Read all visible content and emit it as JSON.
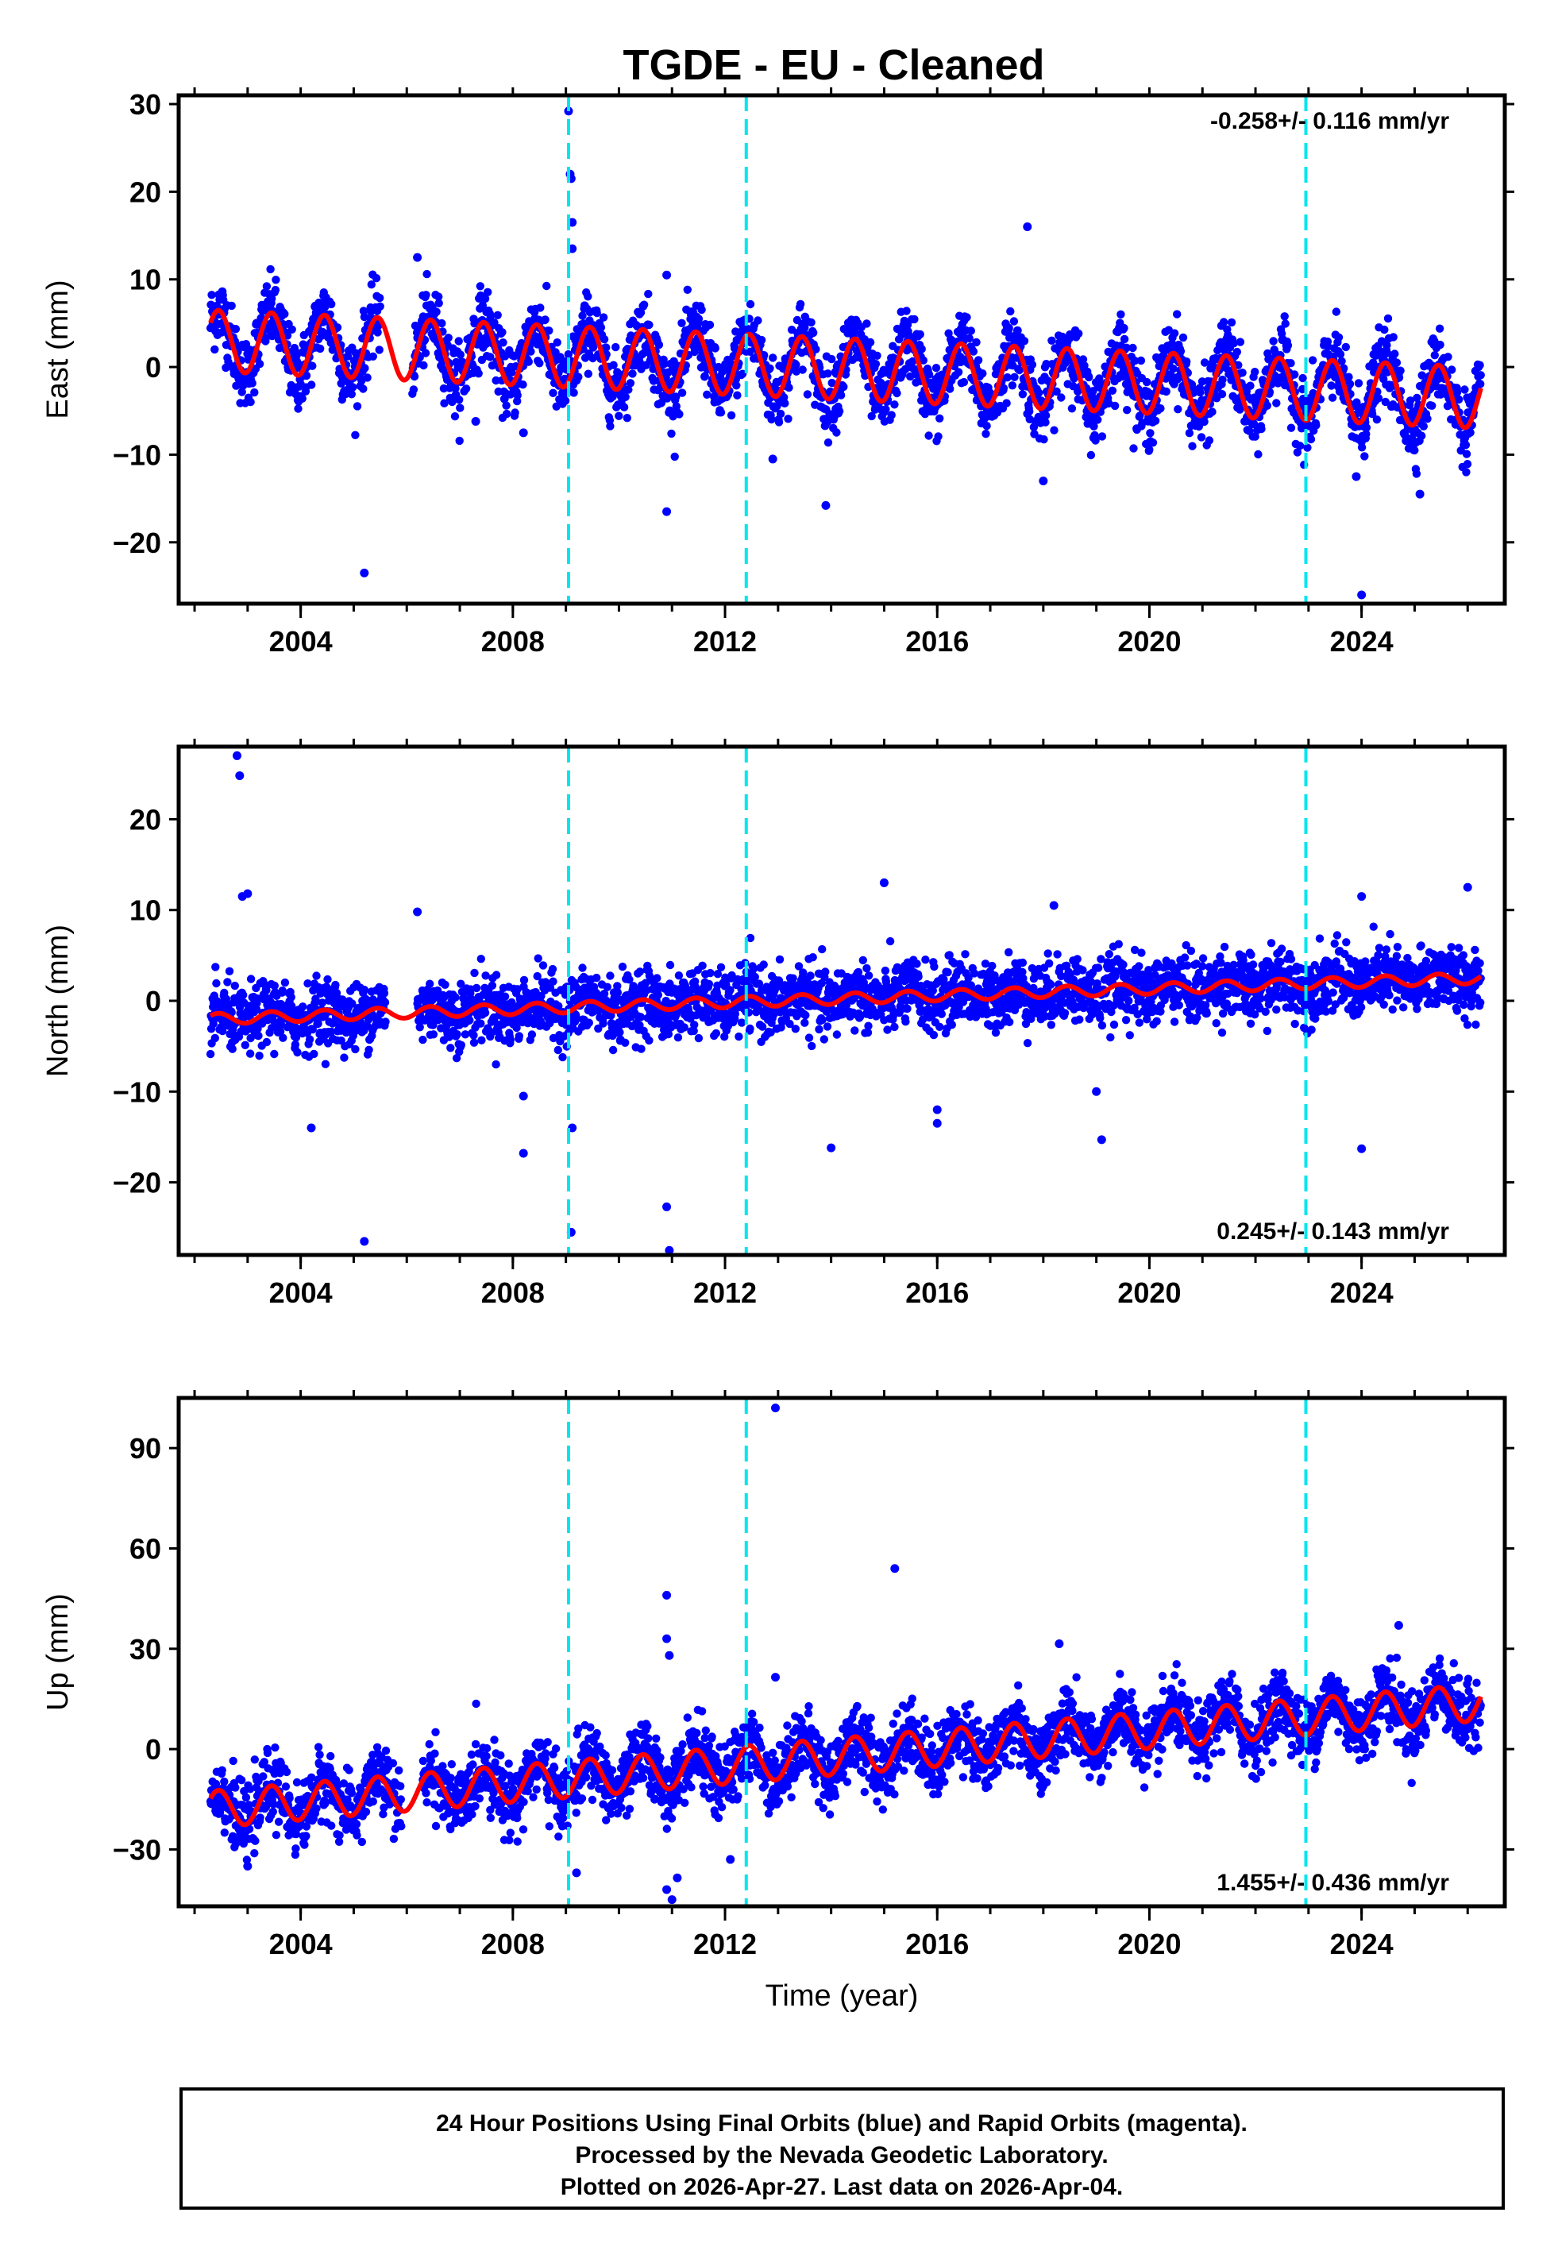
{
  "title": "TGDE  - EU - Cleaned",
  "colors": {
    "data_points": "#0000ff",
    "model_line": "#ff0000",
    "event_lines": "#00e5ee",
    "frame": "#000000"
  },
  "chart_data": [
    {
      "type": "scatter",
      "component": "east",
      "ylabel": "East (mm)",
      "xlim": [
        2001.7,
        2026.7
      ],
      "ylim": [
        -27,
        31
      ],
      "yticks": [
        -20,
        -10,
        0,
        10,
        20,
        30
      ],
      "ytick_labels": [
        "−20",
        "−10",
        "0",
        "10",
        "20",
        "30"
      ],
      "xticks": [
        2004,
        2008,
        2012,
        2016,
        2020,
        2024
      ],
      "xtick_labels": [
        "2004",
        "2008",
        "2012",
        "2016",
        "2020",
        "2024"
      ],
      "rate_label": "-0.258+/- 0.116 mm/yr",
      "rate_position": "top-right",
      "series": [
        {
          "name": "daily positions (final orbits)",
          "color": "#0000ff",
          "trend_start": 3.0,
          "trend_end": -3.5,
          "amplitude": 3.5,
          "scatter": 2.0
        },
        {
          "name": "model fit",
          "color": "#ff0000",
          "trend_start": 3.0,
          "trend_end": -3.5,
          "amplitude": 3.5,
          "steps": []
        }
      ],
      "outliers": [
        [
          2009.05,
          29.2
        ],
        [
          2009.08,
          22.0
        ],
        [
          2009.1,
          21.5
        ],
        [
          2009.12,
          16.5
        ],
        [
          2009.12,
          13.5
        ],
        [
          2006.2,
          12.5
        ],
        [
          2010.9,
          10.5
        ],
        [
          2017.7,
          16.0
        ],
        [
          2005.2,
          -23.5
        ],
        [
          2010.9,
          -16.5
        ],
        [
          2013.9,
          -15.8
        ],
        [
          2018.0,
          -13.0
        ],
        [
          2012.9,
          -10.5
        ],
        [
          2024.0,
          -26.0
        ],
        [
          2023.9,
          -12.5
        ],
        [
          2025.1,
          -14.5
        ],
        [
          2007.3,
          -6.2
        ],
        [
          2008.2,
          -7.5
        ]
      ],
      "event_dates": [
        2009.05,
        2012.4,
        2022.95
      ],
      "gaps": [
        [
          2005.5,
          2006.1
        ]
      ]
    },
    {
      "type": "scatter",
      "component": "north",
      "ylabel": "North (mm)",
      "xlim": [
        2001.7,
        2026.7
      ],
      "ylim": [
        -28,
        28
      ],
      "yticks": [
        -20,
        -10,
        0,
        10,
        20
      ],
      "ytick_labels": [
        "−20",
        "−10",
        "0",
        "10",
        "20"
      ],
      "xticks": [
        2004,
        2008,
        2012,
        2016,
        2020,
        2024
      ],
      "xtick_labels": [
        "2004",
        "2008",
        "2012",
        "2016",
        "2020",
        "2024"
      ],
      "rate_label": "0.245+/- 0.143 mm/yr",
      "rate_position": "bottom-right",
      "series": [
        {
          "name": "daily positions (final orbits)",
          "color": "#0000ff",
          "trend_start": -2.0,
          "trend_end": 2.5,
          "amplitude": 0.6,
          "scatter": 1.8
        },
        {
          "name": "model fit",
          "color": "#ff0000",
          "trend_start": -2.0,
          "trend_end": 2.5,
          "amplitude": 0.6,
          "steps": [
            [
              2009.05,
              -2.8
            ],
            [
              2012.4,
              1.0
            ],
            [
              2022.95,
              2.5
            ]
          ]
        }
      ],
      "outliers": [
        [
          2002.8,
          27.0
        ],
        [
          2002.85,
          24.8
        ],
        [
          2002.9,
          11.5
        ],
        [
          2003.0,
          11.8
        ],
        [
          2006.2,
          9.8
        ],
        [
          2015.0,
          13.0
        ],
        [
          2018.2,
          10.5
        ],
        [
          2026.0,
          12.5
        ],
        [
          2024.0,
          11.5
        ],
        [
          2004.2,
          -14.0
        ],
        [
          2005.2,
          -26.5
        ],
        [
          2008.2,
          -16.8
        ],
        [
          2008.2,
          -10.5
        ],
        [
          2009.1,
          -25.5
        ],
        [
          2009.12,
          -14.0
        ],
        [
          2010.9,
          -22.7
        ],
        [
          2010.95,
          -27.5
        ],
        [
          2014.0,
          -16.2
        ],
        [
          2016.0,
          -13.5
        ],
        [
          2016.0,
          -12.0
        ],
        [
          2019.1,
          -15.3
        ],
        [
          2019.0,
          -10.0
        ],
        [
          2024.0,
          -16.3
        ]
      ],
      "event_dates": [
        2009.05,
        2012.4,
        2022.95
      ],
      "gaps": [
        [
          2005.6,
          2006.2
        ]
      ]
    },
    {
      "type": "scatter",
      "component": "up",
      "ylabel": "Up (mm)",
      "xlim": [
        2001.7,
        2026.7
      ],
      "ylim": [
        -47,
        105
      ],
      "yticks": [
        -30,
        0,
        30,
        60,
        90
      ],
      "ytick_labels": [
        "−30",
        "0",
        "30",
        "60",
        "90"
      ],
      "xticks": [
        2004,
        2008,
        2012,
        2016,
        2020,
        2024
      ],
      "xtick_labels": [
        "2004",
        "2008",
        "2012",
        "2016",
        "2020",
        "2024"
      ],
      "xlabel": "Time (year)",
      "rate_label": "1.455+/- 0.436 mm/yr",
      "rate_position": "bottom-right",
      "series": [
        {
          "name": "daily positions (final orbits)",
          "color": "#0000ff",
          "trend_start": -18.0,
          "trend_end": 14.0,
          "amplitude": 5.5,
          "scatter": 5.0
        },
        {
          "name": "model fit",
          "color": "#ff0000",
          "trend_start": -18.0,
          "trend_end": 14.0,
          "amplitude": 5.5,
          "steps": [
            [
              2012.4,
              8.0
            ]
          ]
        }
      ],
      "outliers": [
        [
          2012.95,
          102.0
        ],
        [
          2015.2,
          54.0
        ],
        [
          2010.9,
          46.0
        ],
        [
          2010.9,
          33.0
        ],
        [
          2010.95,
          28.0
        ],
        [
          2018.3,
          31.5
        ],
        [
          2024.7,
          37.0
        ],
        [
          2012.95,
          21.5
        ],
        [
          2010.9,
          -42.0
        ],
        [
          2011.0,
          -45.0
        ],
        [
          2011.1,
          -38.5
        ],
        [
          2009.2,
          -37.0
        ],
        [
          2012.1,
          -33.0
        ],
        [
          2003.0,
          -35.0
        ]
      ],
      "event_dates": [
        2009.05,
        2012.4,
        2022.95
      ],
      "gaps": [
        [
          2005.9,
          2006.3
        ]
      ]
    }
  ],
  "footer": {
    "line1": "24 Hour Positions Using Final Orbits (blue) and Rapid Orbits (magenta).",
    "line2": "Processed by the Nevada Geodetic Laboratory.",
    "line3": "Plotted on 2026-Apr-27. Last data on 2026-Apr-04."
  }
}
